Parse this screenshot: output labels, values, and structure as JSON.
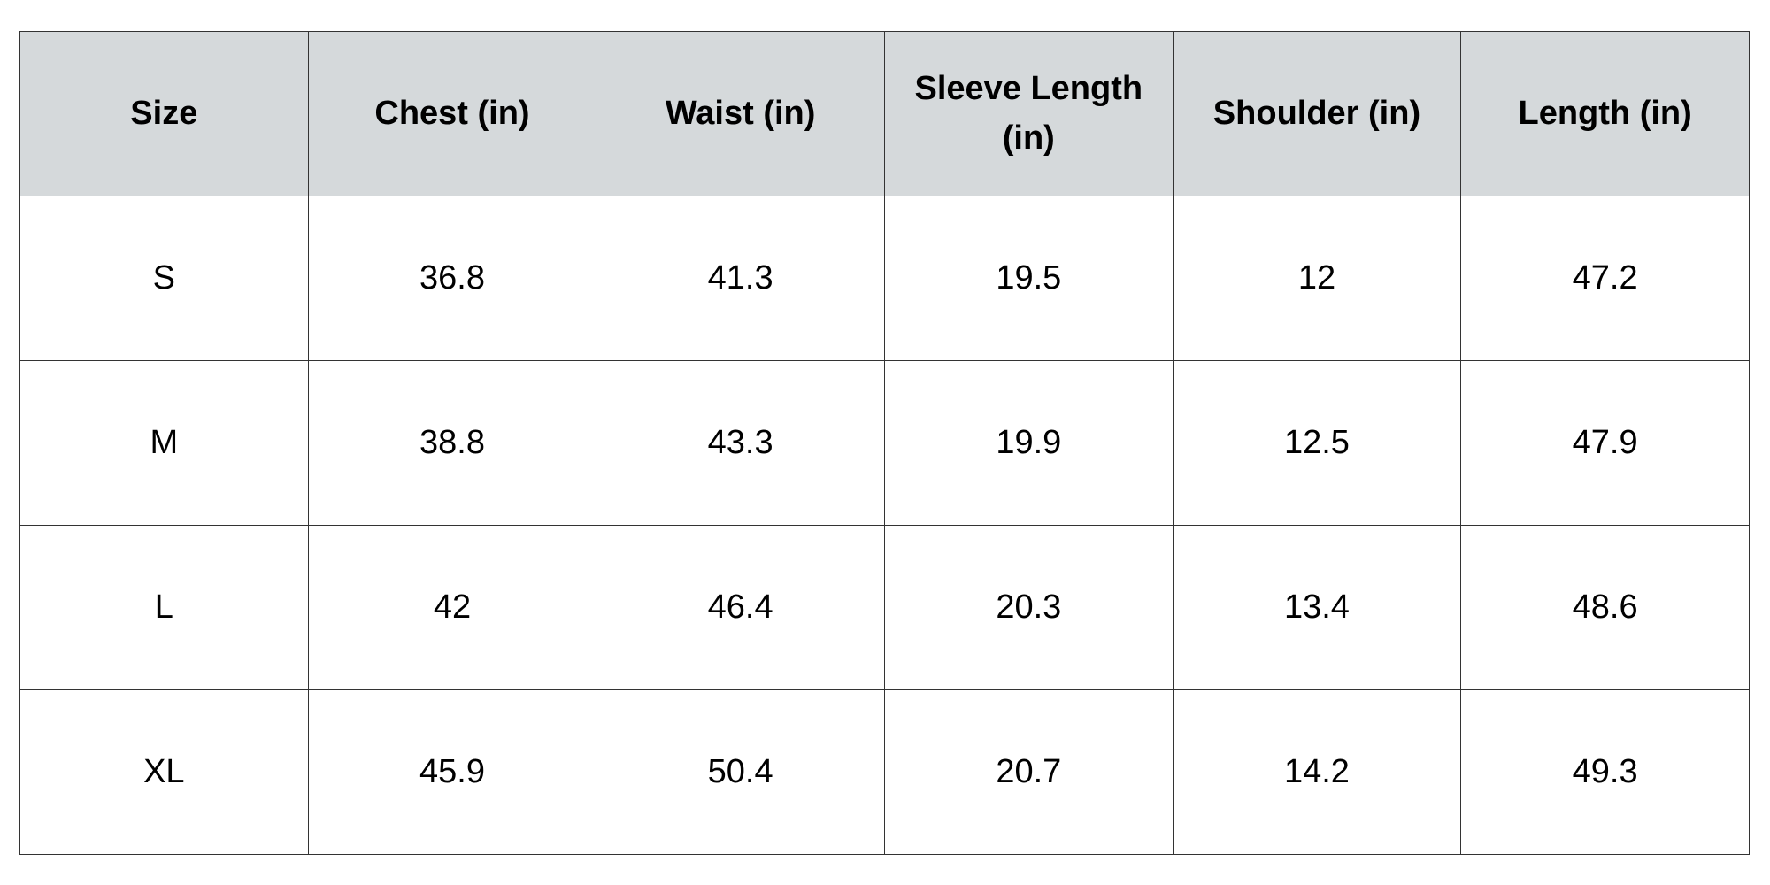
{
  "table": {
    "header": [
      "Size",
      "Chest (in)",
      "Waist (in)",
      "Sleeve Length (in)",
      "Shoulder (in)",
      "Length (in)"
    ],
    "rows": [
      [
        "S",
        36.8,
        41.3,
        19.5,
        12,
        47.2
      ],
      [
        "M",
        38.8,
        43.3,
        19.9,
        12.5,
        47.9
      ],
      [
        "L",
        42,
        46.4,
        20.3,
        13.4,
        48.6
      ],
      [
        "XL",
        45.9,
        50.4,
        20.7,
        14.2,
        49.3
      ]
    ]
  }
}
